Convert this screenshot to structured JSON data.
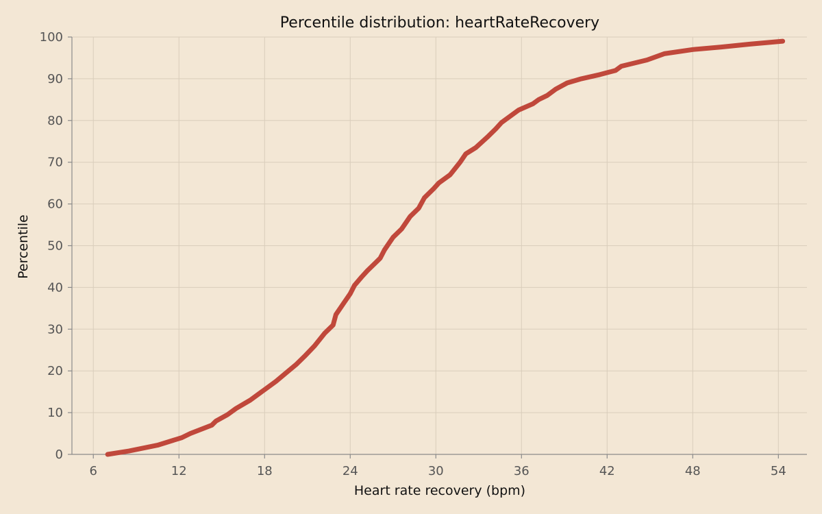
{
  "chart_data": {
    "type": "line",
    "title": "Percentile distribution: heartRateRecovery",
    "xlabel": "Heart rate recovery (bpm)",
    "ylabel": "Percentile",
    "xlim": [
      4.5,
      56
    ],
    "ylim": [
      0,
      100
    ],
    "xticks": [
      6,
      12,
      18,
      24,
      30,
      36,
      42,
      48,
      54
    ],
    "yticks": [
      0,
      10,
      20,
      30,
      40,
      50,
      60,
      70,
      80,
      90,
      100
    ],
    "grid": true,
    "colors": {
      "line": "#c0483b",
      "background": "#f3e7d5"
    },
    "series": [
      {
        "x": [
          7.0,
          8.5,
          10.5,
          12.2,
          12.8,
          14.3,
          14.6,
          15.4,
          16.0,
          17.0,
          17.8,
          18.2,
          18.8,
          19.5,
          20.2,
          20.8,
          21.5,
          22.2,
          22.8,
          23.0,
          23.6,
          24.0,
          24.3,
          24.8,
          25.2,
          25.8,
          26.1,
          26.4,
          26.7,
          27.0,
          27.6,
          28.2,
          28.8,
          29.2,
          29.8,
          30.2,
          31.0,
          31.7,
          32.1,
          32.8,
          33.6,
          34.2,
          34.6,
          35.2,
          35.8,
          36.8,
          37.2,
          37.8,
          38.4,
          39.2,
          40.2,
          41.5,
          42.6,
          43.0,
          44.8,
          46.0,
          48.0,
          50.0,
          52.0,
          54.3
        ],
        "y": [
          0,
          0.8,
          2.2,
          4,
          5,
          7,
          8,
          9.5,
          11,
          13,
          15,
          16,
          17.5,
          19.5,
          21.5,
          23.5,
          26,
          29,
          31,
          33.5,
          36.5,
          38.5,
          40.5,
          42.5,
          44,
          46,
          47,
          49,
          50.5,
          52,
          54,
          57,
          59,
          61.5,
          63.5,
          65,
          67,
          70,
          72,
          73.5,
          76,
          78,
          79.5,
          81,
          82.5,
          84,
          85,
          86,
          87.5,
          89,
          90,
          91,
          92,
          93,
          94.5,
          96,
          97,
          97.6,
          98.3,
          99
        ]
      }
    ]
  }
}
